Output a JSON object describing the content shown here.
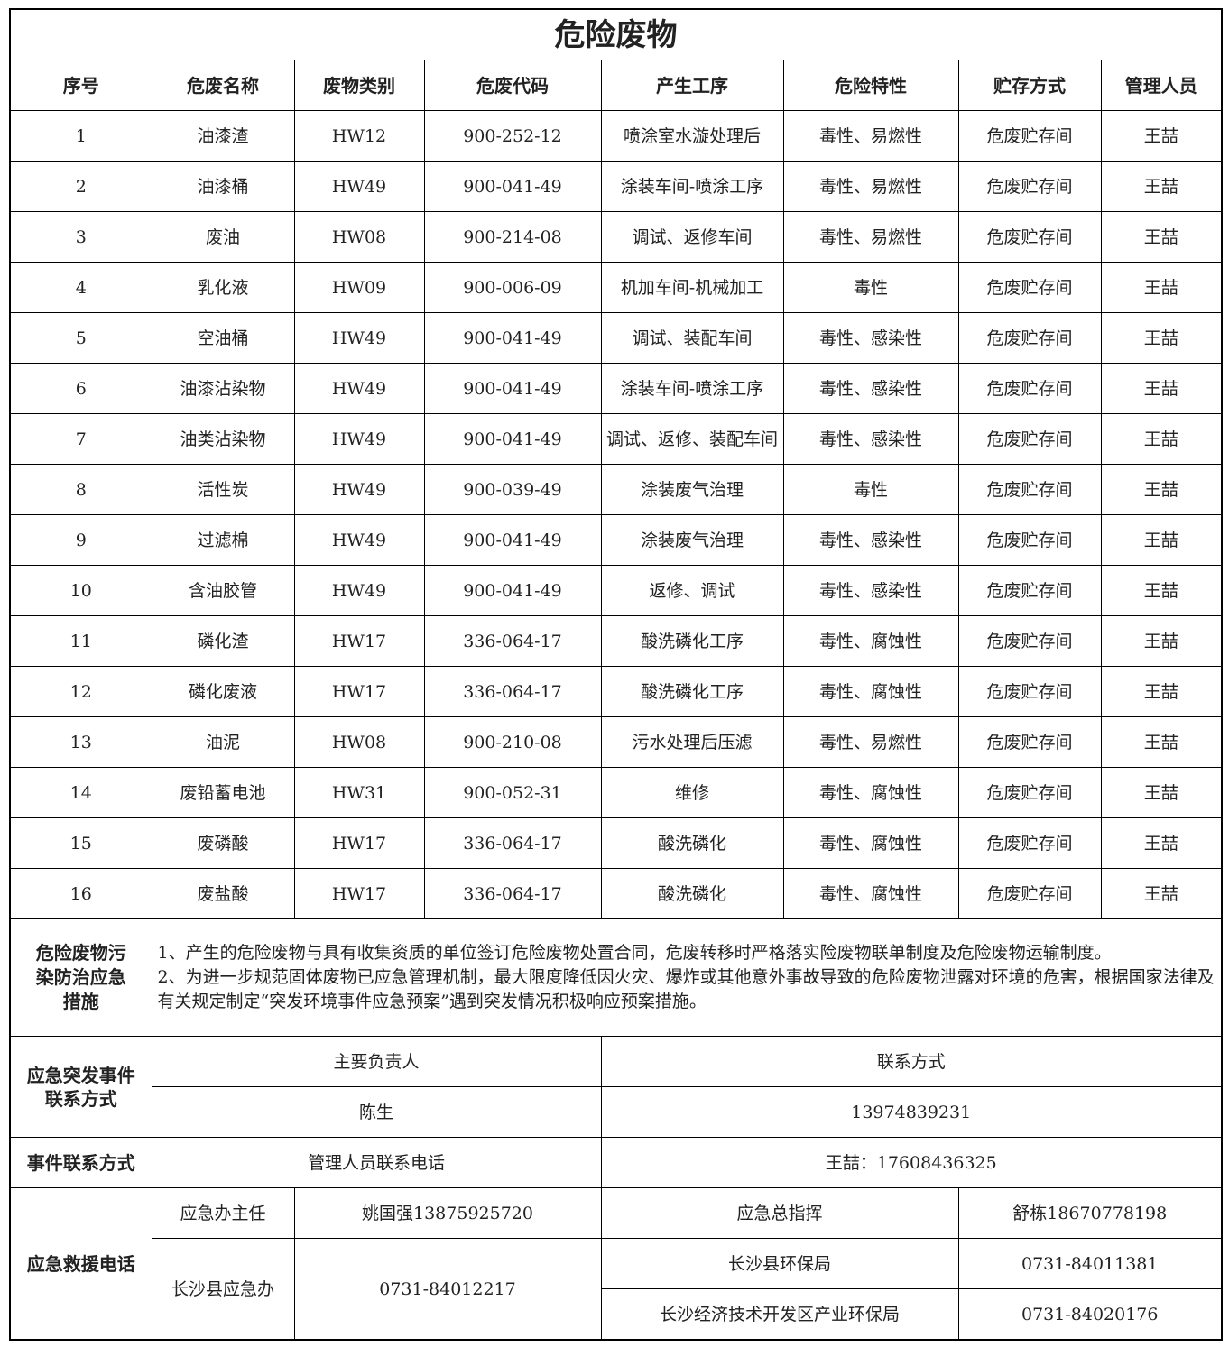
{
  "title": "危险废物",
  "headers": [
    "序号",
    "危废名称",
    "废物类别",
    "危废代码",
    "产生工序",
    "危险特性",
    "贮存方式",
    "管理人员"
  ],
  "rows": [
    [
      "1",
      "油漆渣",
      "HW12",
      "900-252-12",
      "喷涂室水漩处理后",
      "毒性、易燃性",
      "危废贮存间",
      "王喆"
    ],
    [
      "2",
      "油漆桶",
      "HW49",
      "900-041-49",
      "涂装车间-喷涂工序",
      "毒性、易燃性",
      "危废贮存间",
      "王喆"
    ],
    [
      "3",
      "废油",
      "HW08",
      "900-214-08",
      "调试、返修车间",
      "毒性、易燃性",
      "危废贮存间",
      "王喆"
    ],
    [
      "4",
      "乳化液",
      "HW09",
      "900-006-09",
      "机加车间-机械加工",
      "毒性",
      "危废贮存间",
      "王喆"
    ],
    [
      "5",
      "空油桶",
      "HW49",
      "900-041-49",
      "调试、装配车间",
      "毒性、感染性",
      "危废贮存间",
      "王喆"
    ],
    [
      "6",
      "油漆沾染物",
      "HW49",
      "900-041-49",
      "涂装车间-喷涂工序",
      "毒性、感染性",
      "危废贮存间",
      "王喆"
    ],
    [
      "7",
      "油类沾染物",
      "HW49",
      "900-041-49",
      "调试、返修、装配车间",
      "毒性、感染性",
      "危废贮存间",
      "王喆"
    ],
    [
      "8",
      "活性炭",
      "HW49",
      "900-039-49",
      "涂装废气治理",
      "毒性",
      "危废贮存间",
      "王喆"
    ],
    [
      "9",
      "过滤棉",
      "HW49",
      "900-041-49",
      "涂装废气治理",
      "毒性、感染性",
      "危废贮存间",
      "王喆"
    ],
    [
      "10",
      "含油胶管",
      "HW49",
      "900-041-49",
      "返修、调试",
      "毒性、感染性",
      "危废贮存间",
      "王喆"
    ],
    [
      "11",
      "磷化渣",
      "HW17",
      "336-064-17",
      "酸洗磷化工序",
      "毒性、腐蚀性",
      "危废贮存间",
      "王喆"
    ],
    [
      "12",
      "磷化废液",
      "HW17",
      "336-064-17",
      "酸洗磷化工序",
      "毒性、腐蚀性",
      "危废贮存间",
      "王喆"
    ],
    [
      "13",
      "油泥",
      "HW08",
      "900-210-08",
      "污水处理后压滤",
      "毒性、易燃性",
      "危废贮存间",
      "王喆"
    ],
    [
      "14",
      "废铅蓄电池",
      "HW31",
      "900-052-31",
      "维修",
      "毒性、腐蚀性",
      "危废贮存间",
      "王喆"
    ],
    [
      "15",
      "废磷酸",
      "HW17",
      "336-064-17",
      "酸洗磷化",
      "毒性、腐蚀性",
      "危废贮存间",
      "王喆"
    ],
    [
      "16",
      "废盐酸",
      "HW17",
      "336-064-17",
      "酸洗磷化",
      "毒性、腐蚀性",
      "危废贮存间",
      "王喆"
    ]
  ],
  "measures": {
    "label": "危险废物污染防治应急措施",
    "item1": "1、产生的危险废物与具有收集资质的单位签订危险废物处置合同，危废转移时严格落实险废物联单制度及危险废物运输制度。",
    "item2": "2、为进一步规范固体废物已应急管理机制，最大限度降低因火灾、爆炸或其他意外事故导致的危险废物泄露对环境的危害，根据国家法律及有关规定制定“突发环境事件应急预案”遇到突发情况积极响应预案措施。"
  },
  "emergency_contact": {
    "label": "应急突发事件联系方式",
    "col1_header": "主要负责人",
    "col2_header": "联系方式",
    "person": "陈生",
    "phone": "13974839231"
  },
  "event_contact": {
    "label": "事件联系方式",
    "desc": "管理人员联系电话",
    "value": "王喆：17608436325"
  },
  "rescue": {
    "label": "应急救援电话",
    "office_director_label": "应急办主任",
    "office_director": "姚国强13875925720",
    "commander_label": "应急总指挥",
    "commander": "舒栋18670778198",
    "county_office": "长沙县应急办",
    "county_office_phone": "0731-84012217",
    "env_bureau": "长沙县环保局",
    "env_bureau_phone": "0731-84011381",
    "zone_bureau": "长沙经济技术开发区产业环保局",
    "zone_bureau_phone": "0731-84020176"
  }
}
